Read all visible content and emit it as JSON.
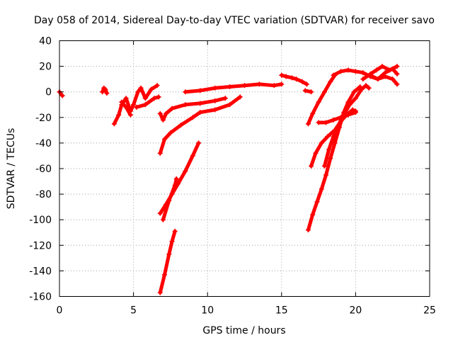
{
  "chart_data": {
    "type": "line",
    "title": "Day 058 of 2014, Sidereal Day-to-day VTEC variation (SDTVAR) for receiver savo",
    "xlabel": "GPS time / hours",
    "ylabel": "SDTVAR / TECUs",
    "xlim": [
      0,
      25
    ],
    "ylim": [
      -160,
      40
    ],
    "xticks": [
      0,
      5,
      10,
      15,
      20,
      25
    ],
    "yticks": [
      40,
      20,
      0,
      -20,
      -40,
      -60,
      -80,
      -100,
      -120,
      -140,
      -160
    ],
    "grid": true,
    "legend": "none",
    "color": "#ff0000",
    "segments": [
      [
        [
          0.0,
          0
        ],
        [
          0.2,
          -3
        ]
      ],
      [
        [
          2.9,
          0
        ],
        [
          3.0,
          3
        ],
        [
          3.1,
          2
        ],
        [
          3.2,
          -1
        ]
      ],
      [
        [
          3.7,
          -25
        ],
        [
          4.0,
          -18
        ],
        [
          4.2,
          -10
        ],
        [
          4.5,
          -5
        ],
        [
          4.8,
          -15
        ],
        [
          5.0,
          -10
        ],
        [
          5.3,
          0
        ],
        [
          5.5,
          3
        ],
        [
          5.8,
          -5
        ],
        [
          6.2,
          2
        ],
        [
          6.6,
          5
        ]
      ],
      [
        [
          4.2,
          -8
        ],
        [
          4.5,
          -12
        ],
        [
          4.8,
          -18
        ]
      ],
      [
        [
          5.2,
          -12
        ],
        [
          5.8,
          -10
        ],
        [
          6.4,
          -5
        ],
        [
          6.7,
          -4
        ]
      ],
      [
        [
          6.8,
          -17
        ],
        [
          7.0,
          -22
        ],
        [
          7.2,
          -17
        ],
        [
          7.6,
          -13
        ],
        [
          8.5,
          -10
        ],
        [
          9.5,
          -9
        ],
        [
          10.5,
          -7
        ],
        [
          11.2,
          -5
        ]
      ],
      [
        [
          6.8,
          -48
        ],
        [
          7.1,
          -37
        ],
        [
          7.5,
          -32
        ],
        [
          8.2,
          -26
        ],
        [
          9.0,
          -20
        ],
        [
          9.5,
          -16
        ],
        [
          10.5,
          -14
        ],
        [
          11.5,
          -10
        ],
        [
          12.2,
          -4
        ]
      ],
      [
        [
          6.8,
          -95
        ],
        [
          7.2,
          -88
        ],
        [
          7.6,
          -80
        ],
        [
          8.0,
          -72
        ],
        [
          8.5,
          -62
        ],
        [
          9.0,
          -50
        ],
        [
          9.4,
          -40
        ]
      ],
      [
        [
          7.0,
          -100
        ],
        [
          7.4,
          -85
        ],
        [
          7.8,
          -73
        ],
        [
          7.9,
          -68
        ]
      ],
      [
        [
          6.8,
          -157
        ],
        [
          7.1,
          -143
        ],
        [
          7.4,
          -127
        ],
        [
          7.6,
          -117
        ],
        [
          7.8,
          -109
        ]
      ],
      [
        [
          8.5,
          0
        ],
        [
          9.5,
          1
        ],
        [
          10.5,
          3
        ],
        [
          11.5,
          4
        ],
        [
          12.5,
          5
        ],
        [
          13.5,
          6
        ],
        [
          14.5,
          5
        ],
        [
          15.0,
          6
        ]
      ],
      [
        [
          15.0,
          13
        ],
        [
          15.3,
          12
        ],
        [
          15.7,
          11
        ],
        [
          16.0,
          10
        ],
        [
          16.4,
          8
        ],
        [
          16.7,
          6
        ]
      ],
      [
        [
          16.6,
          1
        ],
        [
          17.0,
          0
        ]
      ],
      [
        [
          16.8,
          -25
        ],
        [
          17.1,
          -17
        ],
        [
          17.5,
          -8
        ],
        [
          17.9,
          0
        ],
        [
          18.3,
          8
        ],
        [
          18.6,
          13
        ]
      ],
      [
        [
          17.0,
          -58
        ],
        [
          17.3,
          -48
        ],
        [
          17.7,
          -40
        ],
        [
          18.1,
          -35
        ],
        [
          18.6,
          -30
        ],
        [
          19.0,
          -23
        ],
        [
          19.4,
          -18
        ],
        [
          19.8,
          -14
        ],
        [
          20.0,
          -15
        ]
      ],
      [
        [
          16.8,
          -108
        ],
        [
          17.1,
          -96
        ],
        [
          17.4,
          -86
        ],
        [
          17.7,
          -76
        ],
        [
          18.0,
          -65
        ],
        [
          18.3,
          -52
        ],
        [
          18.6,
          -40
        ],
        [
          18.9,
          -28
        ],
        [
          19.2,
          -16
        ],
        [
          19.5,
          -8
        ],
        [
          19.9,
          0
        ],
        [
          20.3,
          4
        ]
      ],
      [
        [
          17.9,
          -58
        ],
        [
          18.2,
          -45
        ],
        [
          18.5,
          -35
        ],
        [
          18.8,
          -27
        ],
        [
          19.2,
          -18
        ],
        [
          19.6,
          -10
        ],
        [
          20.0,
          -5
        ],
        [
          20.4,
          2
        ],
        [
          20.7,
          5
        ],
        [
          20.9,
          3
        ]
      ],
      [
        [
          17.5,
          -24
        ],
        [
          18.0,
          -24
        ],
        [
          18.5,
          -22
        ],
        [
          19.0,
          -20
        ],
        [
          19.5,
          -18
        ],
        [
          20.0,
          -16
        ]
      ],
      [
        [
          18.5,
          13
        ],
        [
          19.0,
          16
        ],
        [
          19.5,
          17
        ],
        [
          20.0,
          16
        ],
        [
          20.5,
          15
        ],
        [
          21.0,
          12
        ],
        [
          21.5,
          10
        ],
        [
          22.0,
          12
        ],
        [
          22.5,
          10
        ],
        [
          22.8,
          6
        ]
      ],
      [
        [
          20.5,
          10
        ],
        [
          21.0,
          14
        ],
        [
          21.4,
          17
        ],
        [
          21.8,
          20
        ],
        [
          22.3,
          17
        ],
        [
          22.8,
          20
        ]
      ],
      [
        [
          21.0,
          13
        ],
        [
          21.5,
          10
        ],
        [
          22.0,
          15
        ],
        [
          22.5,
          18
        ],
        [
          22.8,
          14
        ]
      ]
    ]
  }
}
